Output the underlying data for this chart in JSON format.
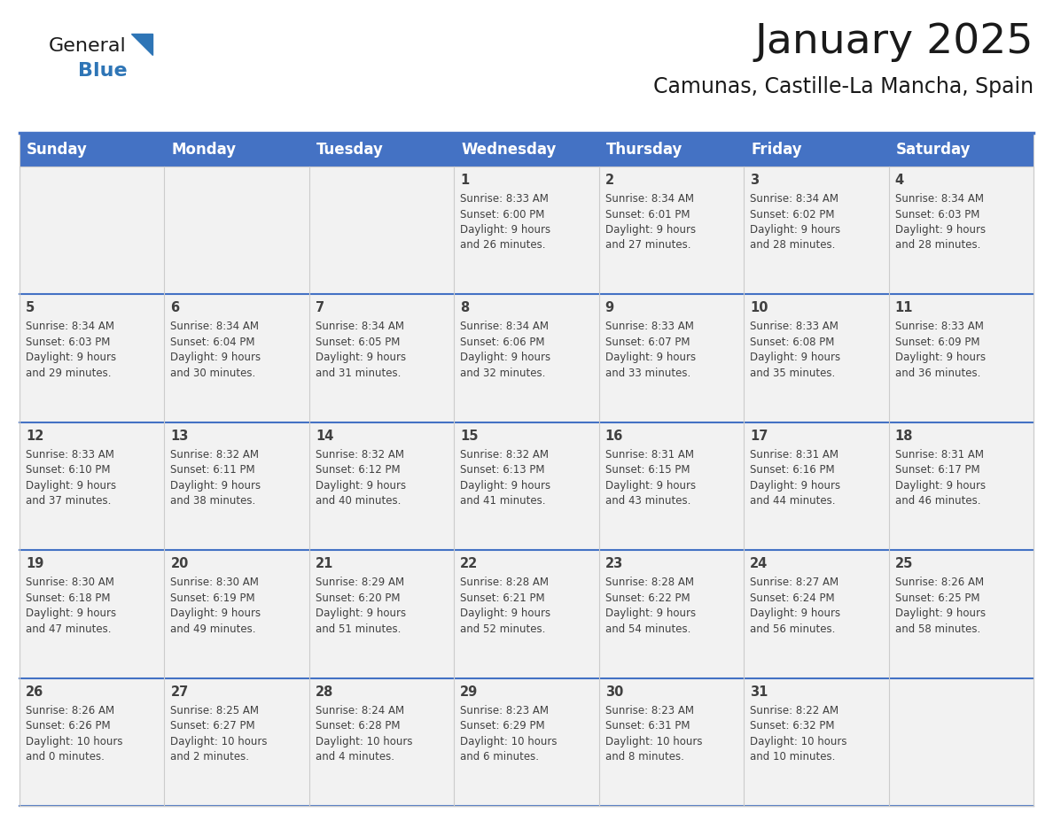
{
  "title": "January 2025",
  "subtitle": "Camunas, Castille-La Mancha, Spain",
  "header_color": "#4472C4",
  "header_text_color": "#FFFFFF",
  "background_color": "#FFFFFF",
  "cell_bg_color": "#F2F2F2",
  "separator_line_color": "#4472C4",
  "cell_border_color": "#CCCCCC",
  "day_names": [
    "Sunday",
    "Monday",
    "Tuesday",
    "Wednesday",
    "Thursday",
    "Friday",
    "Saturday"
  ],
  "title_fontsize": 34,
  "subtitle_fontsize": 17,
  "header_fontsize": 12,
  "cell_fontsize": 8.5,
  "day_num_fontsize": 10.5,
  "day_num_color": "#404040",
  "cell_text_color": "#404040",
  "weeks": [
    [
      {
        "day": 0,
        "text": ""
      },
      {
        "day": 0,
        "text": ""
      },
      {
        "day": 0,
        "text": ""
      },
      {
        "day": 1,
        "text": "Sunrise: 8:33 AM\nSunset: 6:00 PM\nDaylight: 9 hours\nand 26 minutes."
      },
      {
        "day": 2,
        "text": "Sunrise: 8:34 AM\nSunset: 6:01 PM\nDaylight: 9 hours\nand 27 minutes."
      },
      {
        "day": 3,
        "text": "Sunrise: 8:34 AM\nSunset: 6:02 PM\nDaylight: 9 hours\nand 28 minutes."
      },
      {
        "day": 4,
        "text": "Sunrise: 8:34 AM\nSunset: 6:03 PM\nDaylight: 9 hours\nand 28 minutes."
      }
    ],
    [
      {
        "day": 5,
        "text": "Sunrise: 8:34 AM\nSunset: 6:03 PM\nDaylight: 9 hours\nand 29 minutes."
      },
      {
        "day": 6,
        "text": "Sunrise: 8:34 AM\nSunset: 6:04 PM\nDaylight: 9 hours\nand 30 minutes."
      },
      {
        "day": 7,
        "text": "Sunrise: 8:34 AM\nSunset: 6:05 PM\nDaylight: 9 hours\nand 31 minutes."
      },
      {
        "day": 8,
        "text": "Sunrise: 8:34 AM\nSunset: 6:06 PM\nDaylight: 9 hours\nand 32 minutes."
      },
      {
        "day": 9,
        "text": "Sunrise: 8:33 AM\nSunset: 6:07 PM\nDaylight: 9 hours\nand 33 minutes."
      },
      {
        "day": 10,
        "text": "Sunrise: 8:33 AM\nSunset: 6:08 PM\nDaylight: 9 hours\nand 35 minutes."
      },
      {
        "day": 11,
        "text": "Sunrise: 8:33 AM\nSunset: 6:09 PM\nDaylight: 9 hours\nand 36 minutes."
      }
    ],
    [
      {
        "day": 12,
        "text": "Sunrise: 8:33 AM\nSunset: 6:10 PM\nDaylight: 9 hours\nand 37 minutes."
      },
      {
        "day": 13,
        "text": "Sunrise: 8:32 AM\nSunset: 6:11 PM\nDaylight: 9 hours\nand 38 minutes."
      },
      {
        "day": 14,
        "text": "Sunrise: 8:32 AM\nSunset: 6:12 PM\nDaylight: 9 hours\nand 40 minutes."
      },
      {
        "day": 15,
        "text": "Sunrise: 8:32 AM\nSunset: 6:13 PM\nDaylight: 9 hours\nand 41 minutes."
      },
      {
        "day": 16,
        "text": "Sunrise: 8:31 AM\nSunset: 6:15 PM\nDaylight: 9 hours\nand 43 minutes."
      },
      {
        "day": 17,
        "text": "Sunrise: 8:31 AM\nSunset: 6:16 PM\nDaylight: 9 hours\nand 44 minutes."
      },
      {
        "day": 18,
        "text": "Sunrise: 8:31 AM\nSunset: 6:17 PM\nDaylight: 9 hours\nand 46 minutes."
      }
    ],
    [
      {
        "day": 19,
        "text": "Sunrise: 8:30 AM\nSunset: 6:18 PM\nDaylight: 9 hours\nand 47 minutes."
      },
      {
        "day": 20,
        "text": "Sunrise: 8:30 AM\nSunset: 6:19 PM\nDaylight: 9 hours\nand 49 minutes."
      },
      {
        "day": 21,
        "text": "Sunrise: 8:29 AM\nSunset: 6:20 PM\nDaylight: 9 hours\nand 51 minutes."
      },
      {
        "day": 22,
        "text": "Sunrise: 8:28 AM\nSunset: 6:21 PM\nDaylight: 9 hours\nand 52 minutes."
      },
      {
        "day": 23,
        "text": "Sunrise: 8:28 AM\nSunset: 6:22 PM\nDaylight: 9 hours\nand 54 minutes."
      },
      {
        "day": 24,
        "text": "Sunrise: 8:27 AM\nSunset: 6:24 PM\nDaylight: 9 hours\nand 56 minutes."
      },
      {
        "day": 25,
        "text": "Sunrise: 8:26 AM\nSunset: 6:25 PM\nDaylight: 9 hours\nand 58 minutes."
      }
    ],
    [
      {
        "day": 26,
        "text": "Sunrise: 8:26 AM\nSunset: 6:26 PM\nDaylight: 10 hours\nand 0 minutes."
      },
      {
        "day": 27,
        "text": "Sunrise: 8:25 AM\nSunset: 6:27 PM\nDaylight: 10 hours\nand 2 minutes."
      },
      {
        "day": 28,
        "text": "Sunrise: 8:24 AM\nSunset: 6:28 PM\nDaylight: 10 hours\nand 4 minutes."
      },
      {
        "day": 29,
        "text": "Sunrise: 8:23 AM\nSunset: 6:29 PM\nDaylight: 10 hours\nand 6 minutes."
      },
      {
        "day": 30,
        "text": "Sunrise: 8:23 AM\nSunset: 6:31 PM\nDaylight: 10 hours\nand 8 minutes."
      },
      {
        "day": 31,
        "text": "Sunrise: 8:22 AM\nSunset: 6:32 PM\nDaylight: 10 hours\nand 10 minutes."
      },
      {
        "day": 0,
        "text": ""
      }
    ]
  ],
  "logo_text_general": "General",
  "logo_text_blue": "Blue",
  "logo_color_general": "#1a1a1a",
  "logo_color_blue": "#2E75B6",
  "logo_triangle_color": "#2E75B6"
}
